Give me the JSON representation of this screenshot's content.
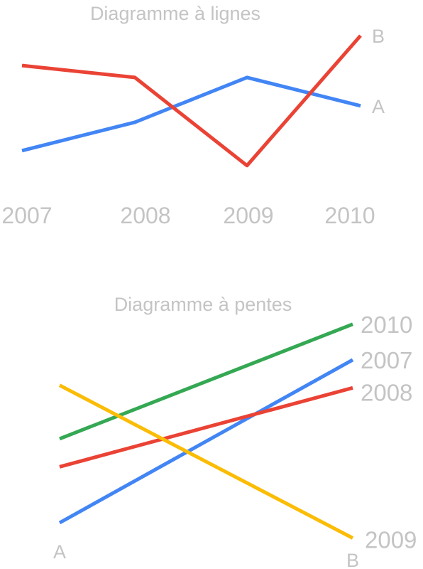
{
  "chart_data": [
    {
      "type": "line",
      "title": "Diagramme à lignes",
      "categories": [
        "2007",
        "2008",
        "2009",
        "2010"
      ],
      "ylim": [
        0,
        10
      ],
      "grid": false,
      "legend": "inline labels at line ends",
      "series": [
        {
          "name": "A",
          "values": [
            2.2,
            4.1,
            7.1,
            5.2
          ],
          "color": "#4285f4"
        },
        {
          "name": "B",
          "values": [
            7.9,
            7.1,
            1.2,
            9.9
          ],
          "color": "#ea4335"
        }
      ]
    },
    {
      "type": "line",
      "subtype": "slope",
      "title": "Diagramme à pentes",
      "categories": [
        "A",
        "B"
      ],
      "ylim": [
        0,
        10
      ],
      "grid": false,
      "legend": "inline labels at right ends",
      "series": [
        {
          "name": "2010",
          "values": [
            4.5,
            9.0
          ],
          "color": "#34a853"
        },
        {
          "name": "2007",
          "values": [
            1.2,
            7.6
          ],
          "color": "#4285f4"
        },
        {
          "name": "2008",
          "values": [
            3.4,
            6.5
          ],
          "color": "#ea4335"
        },
        {
          "name": "2009",
          "values": [
            6.6,
            0.6
          ],
          "color": "#fbbc05"
        }
      ]
    }
  ]
}
